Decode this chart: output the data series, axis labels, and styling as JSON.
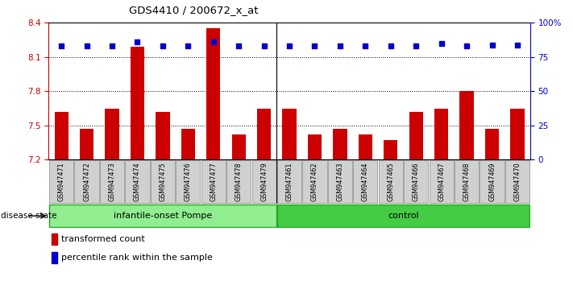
{
  "title": "GDS4410 / 200672_x_at",
  "samples": [
    "GSM947471",
    "GSM947472",
    "GSM947473",
    "GSM947474",
    "GSM947475",
    "GSM947476",
    "GSM947477",
    "GSM947478",
    "GSM947479",
    "GSM947461",
    "GSM947462",
    "GSM947463",
    "GSM947464",
    "GSM947465",
    "GSM947466",
    "GSM947467",
    "GSM947468",
    "GSM947469",
    "GSM947470"
  ],
  "bar_values": [
    7.62,
    7.47,
    7.65,
    8.19,
    7.62,
    7.47,
    8.35,
    7.42,
    7.65,
    7.65,
    7.42,
    7.47,
    7.42,
    7.37,
    7.62,
    7.65,
    7.8,
    7.47,
    7.65
  ],
  "percentile_values": [
    83,
    83,
    83,
    86,
    83,
    83,
    86,
    83,
    83,
    83,
    83,
    83,
    83,
    83,
    83,
    85,
    83,
    84,
    84
  ],
  "group_labels": [
    "infantile-onset Pompe",
    "control"
  ],
  "group_sizes": [
    9,
    10
  ],
  "bar_color": "#CC0000",
  "dot_color": "#0000CC",
  "ylim_left": [
    7.2,
    8.4
  ],
  "ylim_right": [
    0,
    100
  ],
  "yticks_left": [
    7.2,
    7.5,
    7.8,
    8.1,
    8.4
  ],
  "yticks_right": [
    0,
    25,
    50,
    75,
    100
  ],
  "ytick_labels_right": [
    "0",
    "25",
    "50",
    "75",
    "100%"
  ],
  "grid_values": [
    7.5,
    7.8,
    8.1
  ],
  "group1_color": "#90EE90",
  "group2_color": "#44CC44",
  "label_box_color": "#D0D0D0"
}
